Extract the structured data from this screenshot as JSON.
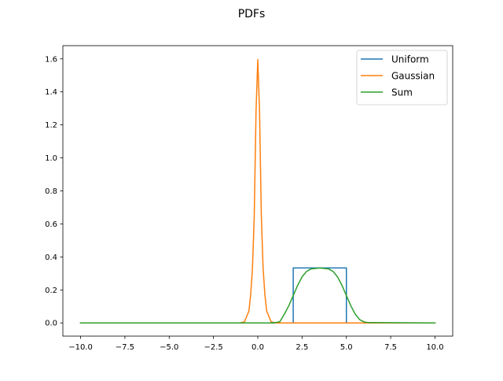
{
  "chart_data": {
    "type": "line",
    "title": "PDFs",
    "xlabel": "",
    "ylabel": "",
    "xlim": [
      -11.0,
      11.0
    ],
    "ylim": [
      -0.08,
      1.68
    ],
    "xticks": [
      -10.0,
      -7.5,
      -5.0,
      -2.5,
      0.0,
      2.5,
      5.0,
      7.5,
      10.0
    ],
    "xtick_labels": [
      "−10.0",
      "−7.5",
      "−5.0",
      "−2.5",
      "0.0",
      "2.5",
      "5.0",
      "7.5",
      "10.0"
    ],
    "yticks": [
      0.0,
      0.2,
      0.4,
      0.6,
      0.8,
      1.0,
      1.2,
      1.4,
      1.6
    ],
    "ytick_labels": [
      "0.0",
      "0.2",
      "0.4",
      "0.6",
      "0.8",
      "1.0",
      "1.2",
      "1.4",
      "1.6"
    ],
    "grid": false,
    "legend_position": "upper right",
    "series": [
      {
        "name": "Uniform",
        "color": "#1f77b4",
        "x": [
          -10.0,
          2.0,
          2.0,
          5.0,
          5.0,
          10.0
        ],
        "y": [
          0.0,
          0.0,
          0.333,
          0.333,
          0.0,
          0.0
        ]
      },
      {
        "name": "Gaussian",
        "color": "#ff7f0e",
        "x": [
          -10.0,
          -1.0,
          -0.75,
          -0.5,
          -0.4,
          -0.3,
          -0.2,
          -0.1,
          0.0,
          0.1,
          0.2,
          0.3,
          0.4,
          0.5,
          0.75,
          1.0,
          10.0
        ],
        "y": [
          0.0,
          0.0,
          0.007,
          0.073,
          0.173,
          0.331,
          0.646,
          1.279,
          1.596,
          1.279,
          0.646,
          0.331,
          0.173,
          0.073,
          0.007,
          0.0,
          0.0
        ]
      },
      {
        "name": "Sum",
        "color": "#2ca02c",
        "x": [
          -10.0,
          0.75,
          1.0,
          1.25,
          1.5,
          1.75,
          2.0,
          2.25,
          2.5,
          2.75,
          3.0,
          3.5,
          4.0,
          4.25,
          4.5,
          4.75,
          5.0,
          5.25,
          5.5,
          5.75,
          6.0,
          6.25,
          10.0
        ],
        "y": [
          0.0,
          0.0,
          0.002,
          0.008,
          0.053,
          0.104,
          0.166,
          0.228,
          0.279,
          0.312,
          0.327,
          0.333,
          0.327,
          0.312,
          0.279,
          0.228,
          0.166,
          0.104,
          0.053,
          0.02,
          0.006,
          0.002,
          0.0
        ]
      }
    ]
  }
}
